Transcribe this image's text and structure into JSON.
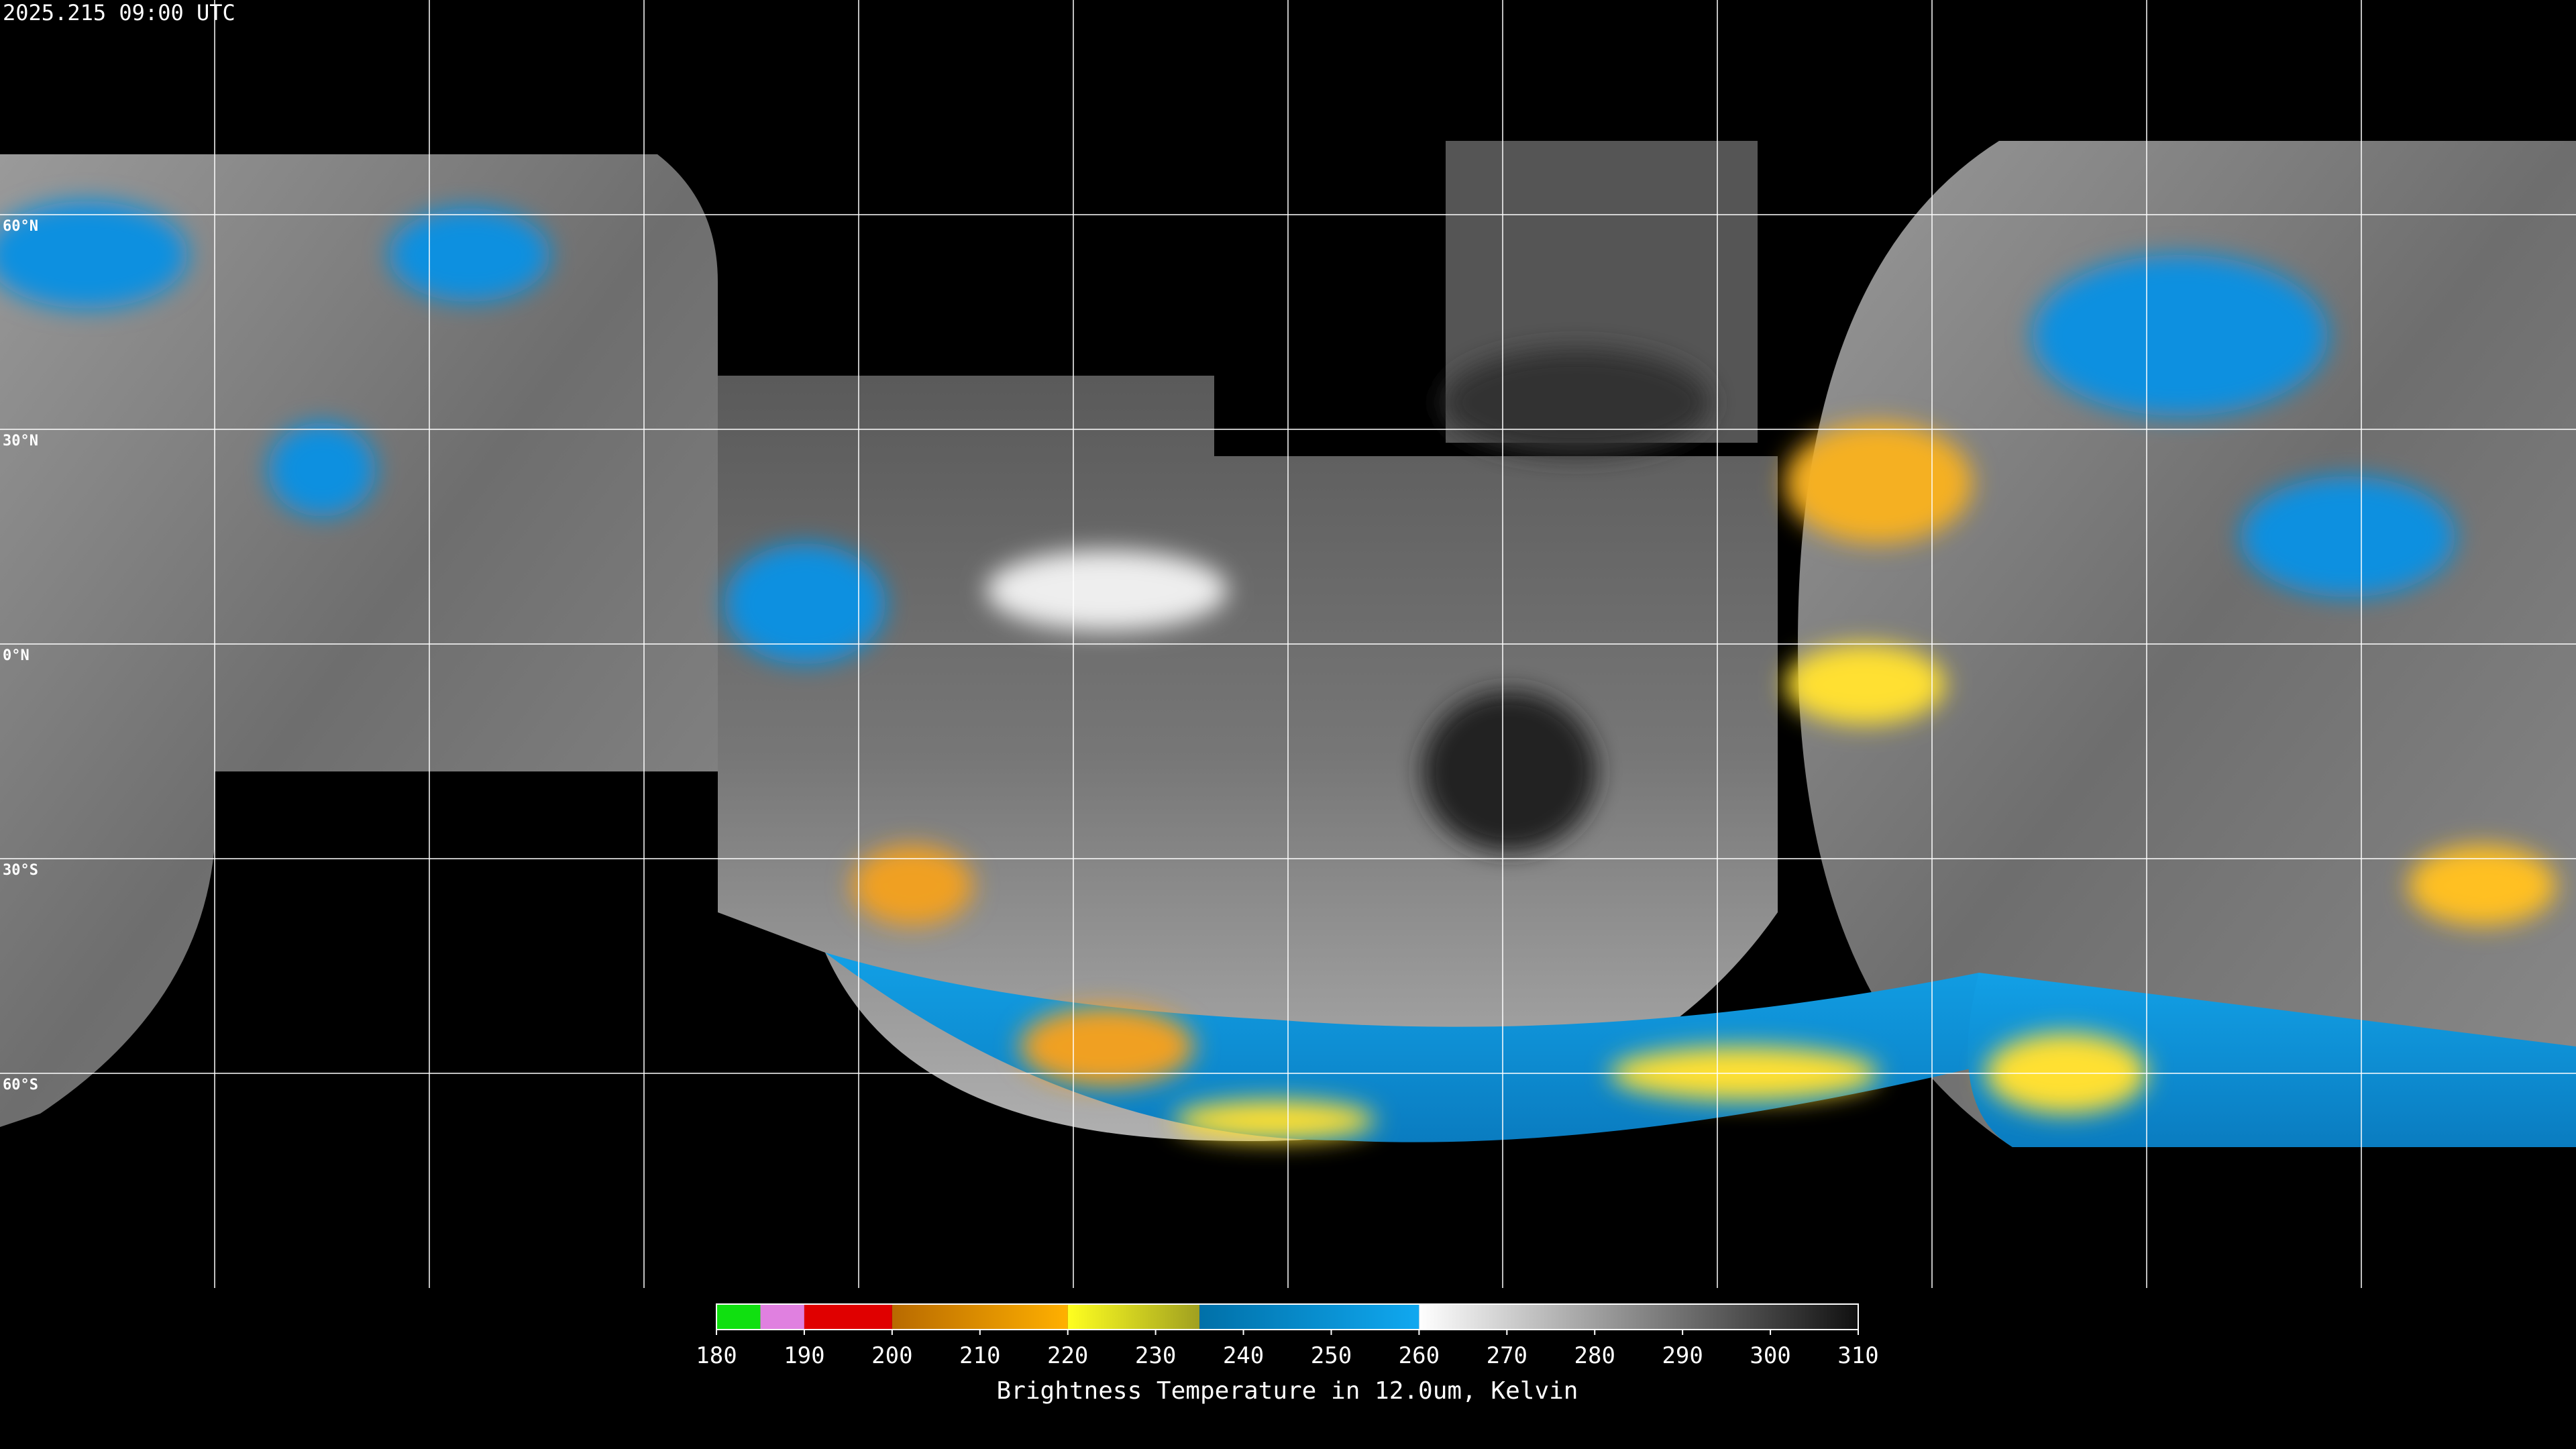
{
  "header": {
    "title": "2025.215 09:00 UTC"
  },
  "map": {
    "latitudes": [
      {
        "value": 60,
        "label": "60°N"
      },
      {
        "value": 30,
        "label": "30°N"
      },
      {
        "value": 0,
        "label": "0°N"
      },
      {
        "value": -30,
        "label": "30°S"
      },
      {
        "value": -60,
        "label": "60°S"
      }
    ],
    "latlim": [
      90,
      -90
    ]
  },
  "colorbar": {
    "lim": [
      180,
      310
    ],
    "ticks": [
      180,
      190,
      200,
      210,
      220,
      230,
      240,
      250,
      260,
      270,
      280,
      290,
      300,
      310
    ],
    "label": "Brightness Temperature in 12.0um, Kelvin",
    "segments": [
      {
        "from": 180,
        "to": 185,
        "color": "#10e010",
        "color2": "#10e010"
      },
      {
        "from": 185,
        "to": 190,
        "color": "#e080e0",
        "color2": "#e080e0"
      },
      {
        "from": 190,
        "to": 200,
        "color": "#e00000",
        "color2": "#e00000"
      },
      {
        "from": 200,
        "to": 220,
        "color": "#b86a00",
        "color2": "#ffb000"
      },
      {
        "from": 220,
        "to": 235,
        "color": "#ffff20",
        "color2": "#a0a020"
      },
      {
        "from": 235,
        "to": 260,
        "color": "#0070a8",
        "color2": "#10a8f0"
      },
      {
        "from": 260,
        "to": 310,
        "color": "#ffffff",
        "color2": "#101010"
      }
    ]
  }
}
